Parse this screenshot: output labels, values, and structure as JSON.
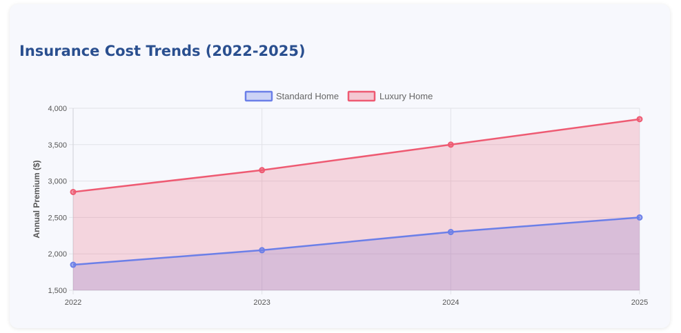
{
  "title": "Insurance Cost Trends (2022-2025)",
  "chart_data": {
    "type": "area",
    "x": [
      "2022",
      "2023",
      "2024",
      "2025"
    ],
    "series": [
      {
        "name": "Standard Home",
        "values": [
          1850,
          2050,
          2300,
          2500
        ],
        "color": "#6b7fe8",
        "fill": "rgba(107,127,232,0.25)"
      },
      {
        "name": "Luxury Home",
        "values": [
          2850,
          3150,
          3500,
          3850
        ],
        "color": "#ee5a72",
        "fill": "rgba(238,90,114,0.22)"
      }
    ],
    "ylabel": "Annual Premium ($)",
    "xlabel": "",
    "ylim": [
      1500,
      4000
    ],
    "yticks": [
      1500,
      2000,
      2500,
      3000,
      3500,
      4000
    ],
    "ytick_labels": [
      "1,500",
      "2,000",
      "2,500",
      "3,000",
      "3,500",
      "4,000"
    ],
    "grid": true,
    "legend_position": "top-center"
  }
}
